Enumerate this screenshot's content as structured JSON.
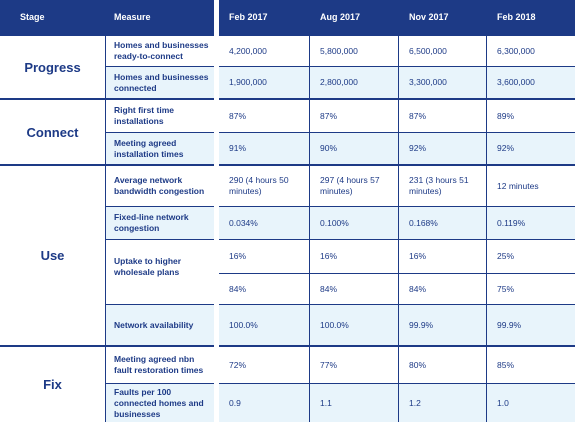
{
  "headers": {
    "stage": "Stage",
    "measure": "Measure",
    "columns": [
      "Feb 2017",
      "Aug 2017",
      "Nov 2017",
      "Feb 2018"
    ]
  },
  "stages": {
    "progress": "Progress",
    "connect": "Connect",
    "use": "Use",
    "fix": "Fix"
  },
  "measures": {
    "homes_ready": "Homes and businesses ready-to-connect",
    "homes_connected": "Homes and businesses connected",
    "right_first_time": "Right first time installations",
    "install_times": "Meeting agreed installation times",
    "bandwidth_congestion": "Average network bandwidth congestion",
    "fixed_line_congestion": "Fixed-line network congestion",
    "uptake_higher": "Uptake to higher wholesale plans",
    "availability": "Network availability",
    "fault_restoration": "Meeting agreed nbn fault restoration times",
    "faults_per_100": "Faults per 100 connected homes and businesses"
  },
  "rows": {
    "homes_ready": [
      "4,200,000",
      "5,800,000",
      "6,500,000",
      "6,300,000"
    ],
    "homes_connected": [
      "1,900,000",
      "2,800,000",
      "3,300,000",
      "3,600,000"
    ],
    "right_first_time": [
      "87%",
      "87%",
      "87%",
      "89%"
    ],
    "install_times": [
      "91%",
      "90%",
      "92%",
      "92%"
    ],
    "bandwidth_congestion": [
      "290 (4 hours 50 minutes)",
      "297 (4 hours 57 minutes)",
      "231 (3 hours 51 minutes)",
      "12 minutes"
    ],
    "fixed_line_congestion": [
      "0.034%",
      "0.100%",
      "0.168%",
      "0.119%"
    ],
    "uptake_a": [
      "16%",
      "16%",
      "16%",
      "25%"
    ],
    "uptake_b": [
      "84%",
      "84%",
      "84%",
      "75%"
    ],
    "availability": [
      "100.0%",
      "100.0%",
      "99.9%",
      "99.9%"
    ],
    "fault_restoration": [
      "72%",
      "77%",
      "80%",
      "85%"
    ],
    "faults_per_100": [
      "0.9",
      "1.1",
      "1.2",
      "1.0"
    ]
  }
}
